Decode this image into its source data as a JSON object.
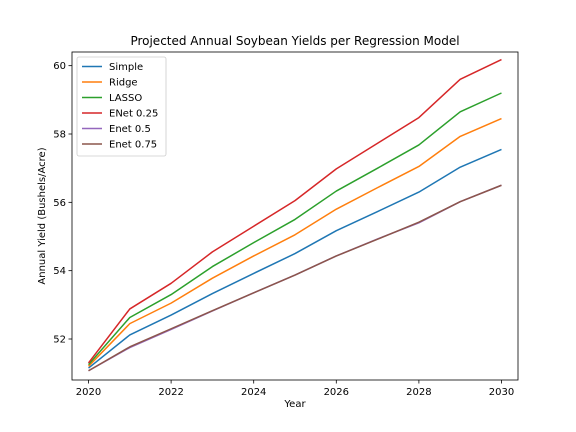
{
  "chart_data": {
    "type": "line",
    "title": "Projected Annual Soybean Yields per Regression Model",
    "xlabel": "Year",
    "ylabel": "Annual Yield (Bushels/Acre)",
    "x": [
      2020,
      2021,
      2022,
      2023,
      2024,
      2025,
      2026,
      2027,
      2028,
      2029,
      2030
    ],
    "xlim": [
      2019.6,
      2030.4
    ],
    "ylim": [
      50.8,
      60.4
    ],
    "xticks": [
      2020,
      2022,
      2024,
      2026,
      2028,
      2030
    ],
    "yticks": [
      52,
      54,
      56,
      58,
      60
    ],
    "grid": false,
    "legend_position": "top-left",
    "series": [
      {
        "name": "Simple",
        "color": "#1f77b4",
        "values": [
          51.15,
          52.12,
          52.7,
          53.33,
          53.92,
          54.5,
          55.17,
          55.73,
          56.3,
          57.03,
          57.55
        ]
      },
      {
        "name": "Ridge",
        "color": "#ff7f0e",
        "values": [
          51.2,
          52.45,
          53.05,
          53.78,
          54.43,
          55.05,
          55.8,
          56.43,
          57.05,
          57.93,
          58.45
        ]
      },
      {
        "name": "LASSO",
        "color": "#2ca02c",
        "values": [
          51.25,
          52.63,
          53.3,
          54.12,
          54.82,
          55.5,
          56.33,
          57.0,
          57.68,
          58.65,
          59.2
        ]
      },
      {
        "name": "ENet 0.25",
        "color": "#d62728",
        "values": [
          51.3,
          52.88,
          53.63,
          54.55,
          55.3,
          56.05,
          56.98,
          57.73,
          58.48,
          59.6,
          60.18
        ]
      },
      {
        "name": "Enet 0.5",
        "color": "#9467bd",
        "values": [
          51.07,
          51.75,
          52.28,
          52.82,
          53.35,
          53.87,
          54.43,
          54.93,
          55.4,
          56.02,
          56.5
        ]
      },
      {
        "name": "Enet 0.75",
        "color": "#8c564b",
        "values": [
          51.07,
          51.77,
          52.3,
          52.83,
          53.35,
          53.87,
          54.43,
          54.92,
          55.42,
          56.02,
          56.5
        ]
      }
    ]
  }
}
